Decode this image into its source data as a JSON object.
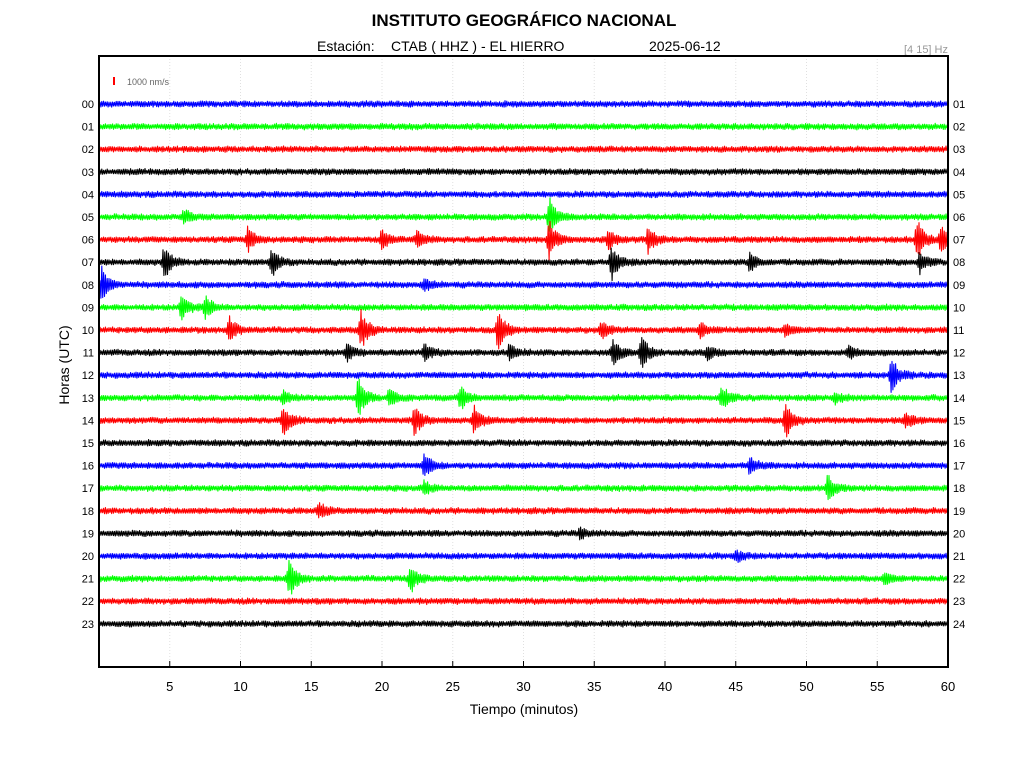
{
  "chart_data": {
    "type": "line",
    "title": "INSTITUTO GEOGRÁFICO NACIONAL",
    "subtitle": {
      "station_label": "Estación:",
      "station": "CTAB ( HHZ ) - EL HIERRO",
      "date": "2025-06-12"
    },
    "filter": "[4 15] Hz",
    "scale_label": "1000 nm/s",
    "scale_color": "#ff0000",
    "xlabel": "Tiempo (minutos)",
    "ylabel": "Horas (UTC)",
    "xlim": [
      0,
      60
    ],
    "x_ticks": [
      5,
      10,
      15,
      20,
      25,
      30,
      35,
      40,
      45,
      50,
      55,
      60
    ],
    "grid": true,
    "colors": [
      "#0000ff",
      "#00ff00",
      "#ff0000",
      "#000000"
    ],
    "left_hours": [
      "00",
      "01",
      "02",
      "03",
      "04",
      "05",
      "06",
      "07",
      "08",
      "09",
      "10",
      "11",
      "12",
      "13",
      "14",
      "15",
      "16",
      "17",
      "18",
      "19",
      "20",
      "21",
      "22",
      "23"
    ],
    "right_hours": [
      "01",
      "02",
      "03",
      "04",
      "05",
      "06",
      "07",
      "08",
      "09",
      "10",
      "11",
      "12",
      "13",
      "14",
      "15",
      "16",
      "17",
      "18",
      "19",
      "20",
      "21",
      "22",
      "23",
      "24"
    ],
    "series": [
      {
        "hour": "00",
        "events": []
      },
      {
        "hour": "01",
        "events": []
      },
      {
        "hour": "02",
        "events": []
      },
      {
        "hour": "03",
        "events": []
      },
      {
        "hour": "04",
        "events": []
      },
      {
        "hour": "05",
        "events": [
          {
            "t": 6.0,
            "amp": 0.35
          },
          {
            "t": 31.8,
            "amp": 1.0
          }
        ]
      },
      {
        "hour": "06",
        "events": [
          {
            "t": 10.5,
            "amp": 0.6
          },
          {
            "t": 20.0,
            "amp": 0.5
          },
          {
            "t": 22.5,
            "amp": 0.4
          },
          {
            "t": 31.8,
            "amp": 0.9
          },
          {
            "t": 36.0,
            "amp": 0.5
          },
          {
            "t": 38.8,
            "amp": 0.6
          },
          {
            "t": 57.8,
            "amp": 1.0
          },
          {
            "t": 59.5,
            "amp": 0.8
          }
        ]
      },
      {
        "hour": "07",
        "events": [
          {
            "t": 4.6,
            "amp": 0.8
          },
          {
            "t": 12.2,
            "amp": 0.7
          },
          {
            "t": 36.2,
            "amp": 0.9
          },
          {
            "t": 46.0,
            "amp": 0.45
          },
          {
            "t": 58.0,
            "amp": 0.5
          }
        ]
      },
      {
        "hour": "08",
        "events": [
          {
            "t": 0.2,
            "amp": 0.8
          },
          {
            "t": 23.0,
            "amp": 0.3
          }
        ]
      },
      {
        "hour": "09",
        "events": [
          {
            "t": 5.8,
            "amp": 0.6
          },
          {
            "t": 7.5,
            "amp": 0.55
          }
        ]
      },
      {
        "hour": "10",
        "events": [
          {
            "t": 9.2,
            "amp": 0.6
          },
          {
            "t": 18.5,
            "amp": 1.0
          },
          {
            "t": 28.2,
            "amp": 1.0
          },
          {
            "t": 35.5,
            "amp": 0.4
          },
          {
            "t": 42.5,
            "amp": 0.35
          },
          {
            "t": 48.5,
            "amp": 0.3
          }
        ]
      },
      {
        "hour": "11",
        "events": [
          {
            "t": 17.5,
            "amp": 0.4
          },
          {
            "t": 23.0,
            "amp": 0.4
          },
          {
            "t": 29.0,
            "amp": 0.4
          },
          {
            "t": 36.3,
            "amp": 0.7
          },
          {
            "t": 38.3,
            "amp": 0.9
          },
          {
            "t": 43.0,
            "amp": 0.35
          },
          {
            "t": 53.0,
            "amp": 0.3
          }
        ]
      },
      {
        "hour": "12",
        "events": [
          {
            "t": 56.0,
            "amp": 0.8
          }
        ]
      },
      {
        "hour": "13",
        "events": [
          {
            "t": 13.0,
            "amp": 0.3
          },
          {
            "t": 18.3,
            "amp": 1.0
          },
          {
            "t": 20.5,
            "amp": 0.5
          },
          {
            "t": 25.5,
            "amp": 0.6
          },
          {
            "t": 44.0,
            "amp": 0.55
          },
          {
            "t": 52.0,
            "amp": 0.3
          }
        ]
      },
      {
        "hour": "14",
        "events": [
          {
            "t": 13.0,
            "amp": 0.8
          },
          {
            "t": 22.3,
            "amp": 0.7
          },
          {
            "t": 26.5,
            "amp": 0.8
          },
          {
            "t": 48.5,
            "amp": 0.9
          },
          {
            "t": 57.0,
            "amp": 0.4
          }
        ]
      },
      {
        "hour": "15",
        "events": []
      },
      {
        "hour": "16",
        "events": [
          {
            "t": 23.0,
            "amp": 0.6
          },
          {
            "t": 46.0,
            "amp": 0.45
          }
        ]
      },
      {
        "hour": "17",
        "events": [
          {
            "t": 23.0,
            "amp": 0.3
          },
          {
            "t": 51.5,
            "amp": 0.6
          }
        ]
      },
      {
        "hour": "18",
        "events": [
          {
            "t": 15.5,
            "amp": 0.4
          }
        ]
      },
      {
        "hour": "19",
        "events": [
          {
            "t": 34.0,
            "amp": 0.25
          }
        ]
      },
      {
        "hour": "20",
        "events": [
          {
            "t": 45.0,
            "amp": 0.25
          }
        ]
      },
      {
        "hour": "21",
        "events": [
          {
            "t": 13.4,
            "amp": 1.0
          },
          {
            "t": 22.0,
            "amp": 0.7
          },
          {
            "t": 55.5,
            "amp": 0.3
          }
        ]
      },
      {
        "hour": "22",
        "events": []
      },
      {
        "hour": "23",
        "events": []
      }
    ]
  }
}
